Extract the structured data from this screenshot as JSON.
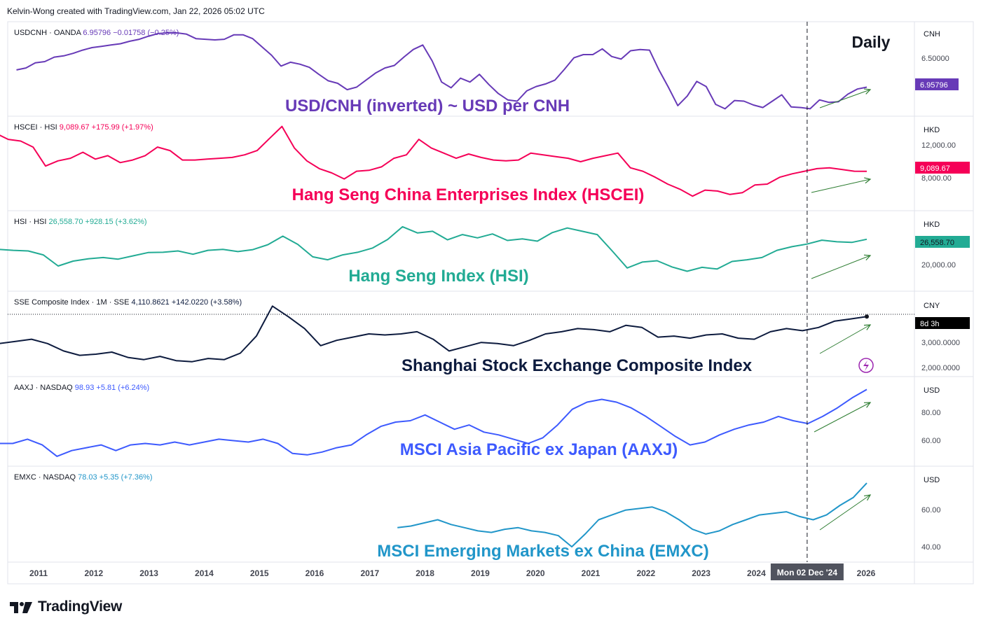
{
  "header": {
    "attribution": "Kelvin-Wong created with TradingView.com, Jan 22, 2026 05:02 UTC"
  },
  "timeframe_label": "Daily",
  "brand": {
    "name": "TradingView"
  },
  "crosshair": {
    "date_label": "Mon 02 Dec '24"
  },
  "colors": {
    "usdcnh": "#673ab7",
    "hscei": "#f50057",
    "hsi": "#22ab94",
    "sse": "#0d1b3e",
    "aaxj": "#3d5afe",
    "emxc": "#2196c9",
    "arrow": "#2e7d32",
    "grid": "#e0e3eb",
    "axis_text": "#131722",
    "price_tag_text": "#ffffff"
  },
  "chart_data": {
    "type": "line",
    "x_ticks": [
      "2011",
      "2012",
      "2013",
      "2014",
      "2015",
      "2016",
      "2017",
      "2018",
      "2019",
      "2020",
      "2021",
      "2022",
      "2023",
      "2024",
      "2026"
    ],
    "panels": [
      {
        "id": "usdcnh",
        "legend": {
          "symbol": "USDCNH · OANDA",
          "value": "6.95796",
          "change": "−0.01758",
          "pct": "(−0.25%)"
        },
        "annotation": "USD/CNH (inverted) ~ USD per CNH",
        "currency": "CNH",
        "y_labels": [
          {
            "text": "6.50000",
            "v": 6.5
          }
        ],
        "last_tag": "6.95796",
        "inverted": true,
        "ylim": [
          6.0,
          7.35
        ],
        "x_start": 2010.6,
        "values": [
          6.69,
          6.66,
          6.58,
          6.56,
          6.49,
          6.47,
          6.43,
          6.38,
          6.34,
          6.32,
          6.3,
          6.28,
          6.24,
          6.21,
          6.16,
          6.12,
          6.11,
          6.11,
          6.13,
          6.2,
          6.21,
          6.22,
          6.21,
          6.14,
          6.14,
          6.2,
          6.33,
          6.46,
          6.63,
          6.57,
          6.6,
          6.65,
          6.76,
          6.86,
          6.9,
          7.0,
          6.96,
          6.85,
          6.74,
          6.66,
          6.62,
          6.49,
          6.37,
          6.3,
          6.55,
          6.88,
          6.97,
          6.82,
          6.88,
          6.76,
          6.92,
          7.06,
          7.16,
          7.18,
          7.02,
          6.95,
          6.91,
          6.85,
          6.68,
          6.5,
          6.45,
          6.45,
          6.36,
          6.48,
          6.52,
          6.39,
          6.37,
          6.38,
          6.69,
          6.96,
          7.25,
          7.1,
          6.87,
          6.95,
          7.23,
          7.3,
          7.17,
          7.18,
          7.24,
          7.28,
          7.18,
          7.08,
          7.27,
          7.28,
          7.3,
          7.16,
          7.2,
          7.19,
          7.07,
          6.99,
          6.96
        ]
      },
      {
        "id": "hscei",
        "legend": {
          "symbol": "HSCEI · HSI",
          "value": "9,089.67",
          "change": "+175.99",
          "pct": "(+1.97%)"
        },
        "annotation": "Hang Seng China Enterprises Index (HSCEI)",
        "currency": "HKD",
        "y_labels": [
          {
            "text": "12,000.00",
            "v": 12000
          },
          {
            "text": "8,000.00",
            "v": 8000
          }
        ],
        "last_tag": "9,089.67",
        "ylim": [
          5000,
          15000
        ],
        "x_start": 2010.0,
        "values": [
          12800,
          13500,
          12800,
          12600,
          11900,
          9700,
          10300,
          10600,
          11300,
          10500,
          10900,
          10100,
          10400,
          10900,
          11900,
          11500,
          10400,
          10400,
          10500,
          10600,
          10700,
          11000,
          11500,
          12900,
          14300,
          11800,
          10300,
          9400,
          8900,
          8200,
          9100,
          9200,
          9600,
          10600,
          11000,
          12800,
          11800,
          11200,
          10600,
          11100,
          10700,
          10400,
          10300,
          10400,
          11200,
          11000,
          10800,
          10600,
          10200,
          10600,
          10900,
          11200,
          9500,
          9100,
          8400,
          7600,
          7000,
          6200,
          6900,
          6800,
          6400,
          6600,
          7500,
          7600,
          8400,
          8800,
          9100,
          9400,
          9500,
          9300,
          9100,
          9089.67
        ]
      },
      {
        "id": "hsi",
        "legend": {
          "symbol": "HSI · HSI",
          "value": "26,558.70",
          "change": "+928.15",
          "pct": "(+3.62%)"
        },
        "annotation": "Hang Seng Index (HSI)",
        "currency": "HKD",
        "y_labels": [
          {
            "text": "20,000.00",
            "v": 20000
          }
        ],
        "last_tag": "26,558.70",
        "ylim": [
          12000,
          34000
        ],
        "x_start": 2010.0,
        "values": [
          22800,
          23500,
          23200,
          23000,
          21800,
          18400,
          19900,
          20600,
          21000,
          20500,
          21500,
          22500,
          22600,
          23000,
          22000,
          23200,
          23500,
          22800,
          23400,
          24900,
          27500,
          25000,
          21200,
          20300,
          21800,
          22600,
          23900,
          26500,
          30400,
          28500,
          29000,
          26400,
          28000,
          27000,
          28200,
          26200,
          26700,
          26000,
          28600,
          30000,
          29000,
          28000,
          23000,
          17800,
          19600,
          20000,
          18100,
          16800,
          18000,
          17500,
          19800,
          20300,
          21000,
          23200,
          24300,
          25100,
          26300,
          25800,
          25600,
          26558.7
        ]
      },
      {
        "id": "sse",
        "legend": {
          "symbol": "SSE Composite Index · 1M · SSE",
          "value": "4,110.8621",
          "change": "+142.0220",
          "pct": "(+3.58%)"
        },
        "annotation": "Shanghai Stock Exchange Composite Index",
        "currency": "CNY",
        "y_labels": [
          {
            "text": "3,000.0000",
            "v": 3000
          },
          {
            "text": "2,000.0000",
            "v": 2000
          }
        ],
        "last_tag": "8d 3h",
        "ylim": [
          1500,
          5100
        ],
        "x_start": 2010.0,
        "values": [
          2700,
          2850,
          2950,
          3050,
          2850,
          2500,
          2300,
          2350,
          2450,
          2200,
          2100,
          2250,
          2050,
          2000,
          2150,
          2100,
          2400,
          3200,
          4600,
          4100,
          3550,
          2750,
          3000,
          3150,
          3300,
          3250,
          3300,
          3400,
          3050,
          2500,
          2700,
          2900,
          2850,
          2750,
          3000,
          3300,
          3400,
          3550,
          3500,
          3400,
          3700,
          3600,
          3150,
          3200,
          3100,
          3250,
          3300,
          3100,
          3050,
          3400,
          3550,
          3450,
          3600,
          3900,
          4000,
          4110.86
        ]
      },
      {
        "id": "aaxj",
        "legend": {
          "symbol": "AAXJ · NASDAQ",
          "value": "98.93",
          "change": "+5.81",
          "pct": "(+6.24%)"
        },
        "annotation": "MSCI Asia Pacific ex Japan (AAXJ)",
        "currency": "USD",
        "y_labels": [
          {
            "text": "80.00",
            "v": 80
          },
          {
            "text": "60.00",
            "v": 60
          }
        ],
        "ylim": [
          48,
          105
        ],
        "x_start": 2010.0,
        "values": [
          57,
          61,
          61,
          64,
          60,
          52,
          56,
          58,
          60,
          56,
          60,
          61,
          60,
          62,
          60,
          62,
          64,
          63,
          62,
          64,
          61,
          54,
          53,
          55,
          58,
          60,
          67,
          73,
          76,
          77,
          81,
          76,
          71,
          74,
          69,
          67,
          64,
          61,
          65,
          74,
          85,
          90,
          92,
          90,
          86,
          80,
          73,
          66,
          60,
          62,
          67,
          71,
          74,
          76,
          80,
          77,
          75,
          80,
          86,
          93,
          98.93
        ]
      },
      {
        "id": "emxc",
        "legend": {
          "symbol": "EMXC · NASDAQ",
          "value": "78.03",
          "change": "+5.35",
          "pct": "(+7.36%)"
        },
        "annotation": "MSCI Emerging Markets ex China (EMXC)",
        "currency": "USD",
        "y_labels": [
          {
            "text": "60.00",
            "v": 60
          },
          {
            "text": "40.00",
            "v": 40
          }
        ],
        "ylim": [
          31,
          86
        ],
        "x_start": 2017.5,
        "values": [
          50,
          51,
          53,
          55,
          52,
          50,
          48,
          47,
          49,
          50,
          48,
          47,
          45,
          38,
          46,
          55,
          58,
          61,
          62,
          63,
          60,
          55,
          49,
          46,
          48,
          52,
          55,
          58,
          59,
          60,
          57,
          55,
          58,
          64,
          69,
          78.03
        ]
      }
    ]
  }
}
